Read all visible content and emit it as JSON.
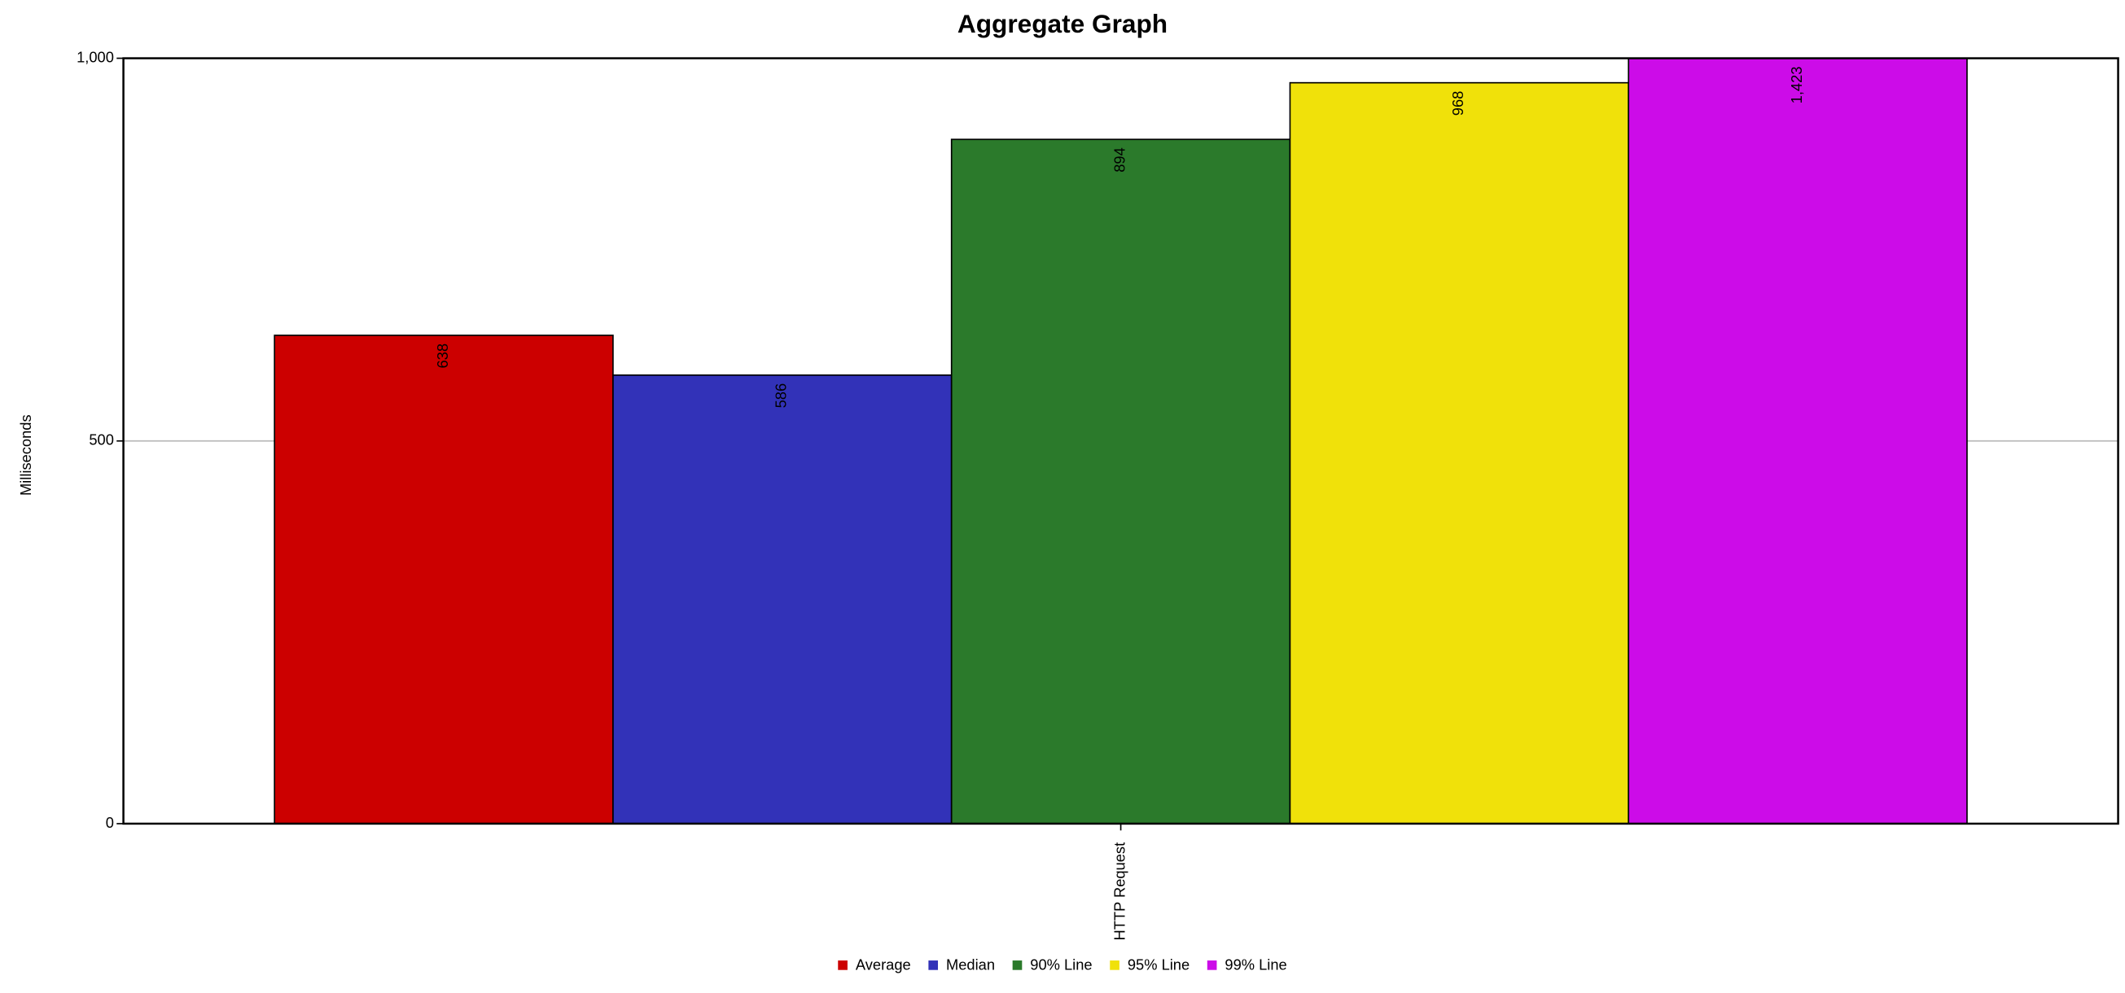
{
  "chart_data": {
    "type": "bar",
    "title": "Aggregate Graph",
    "y_label": "Milliseconds",
    "categories": [
      "HTTP Request"
    ],
    "series": [
      {
        "name": "Average",
        "color": "#cc0000",
        "values": [
          638
        ]
      },
      {
        "name": "Median",
        "color": "#3232b8",
        "values": [
          586
        ]
      },
      {
        "name": "90% Line",
        "color": "#2b7a2b",
        "values": [
          894
        ]
      },
      {
        "name": "95% Line",
        "color": "#f0e10a",
        "values": [
          968
        ]
      },
      {
        "name": "99% Line",
        "color": "#cc0ce8",
        "values": [
          1423
        ],
        "value_labels": [
          "1,423"
        ]
      }
    ],
    "ylim": [
      0,
      1000
    ],
    "yticks": [
      0,
      500,
      {
        "value": 1000,
        "label": "1,000"
      }
    ],
    "grid": true,
    "legend": "bottom"
  }
}
